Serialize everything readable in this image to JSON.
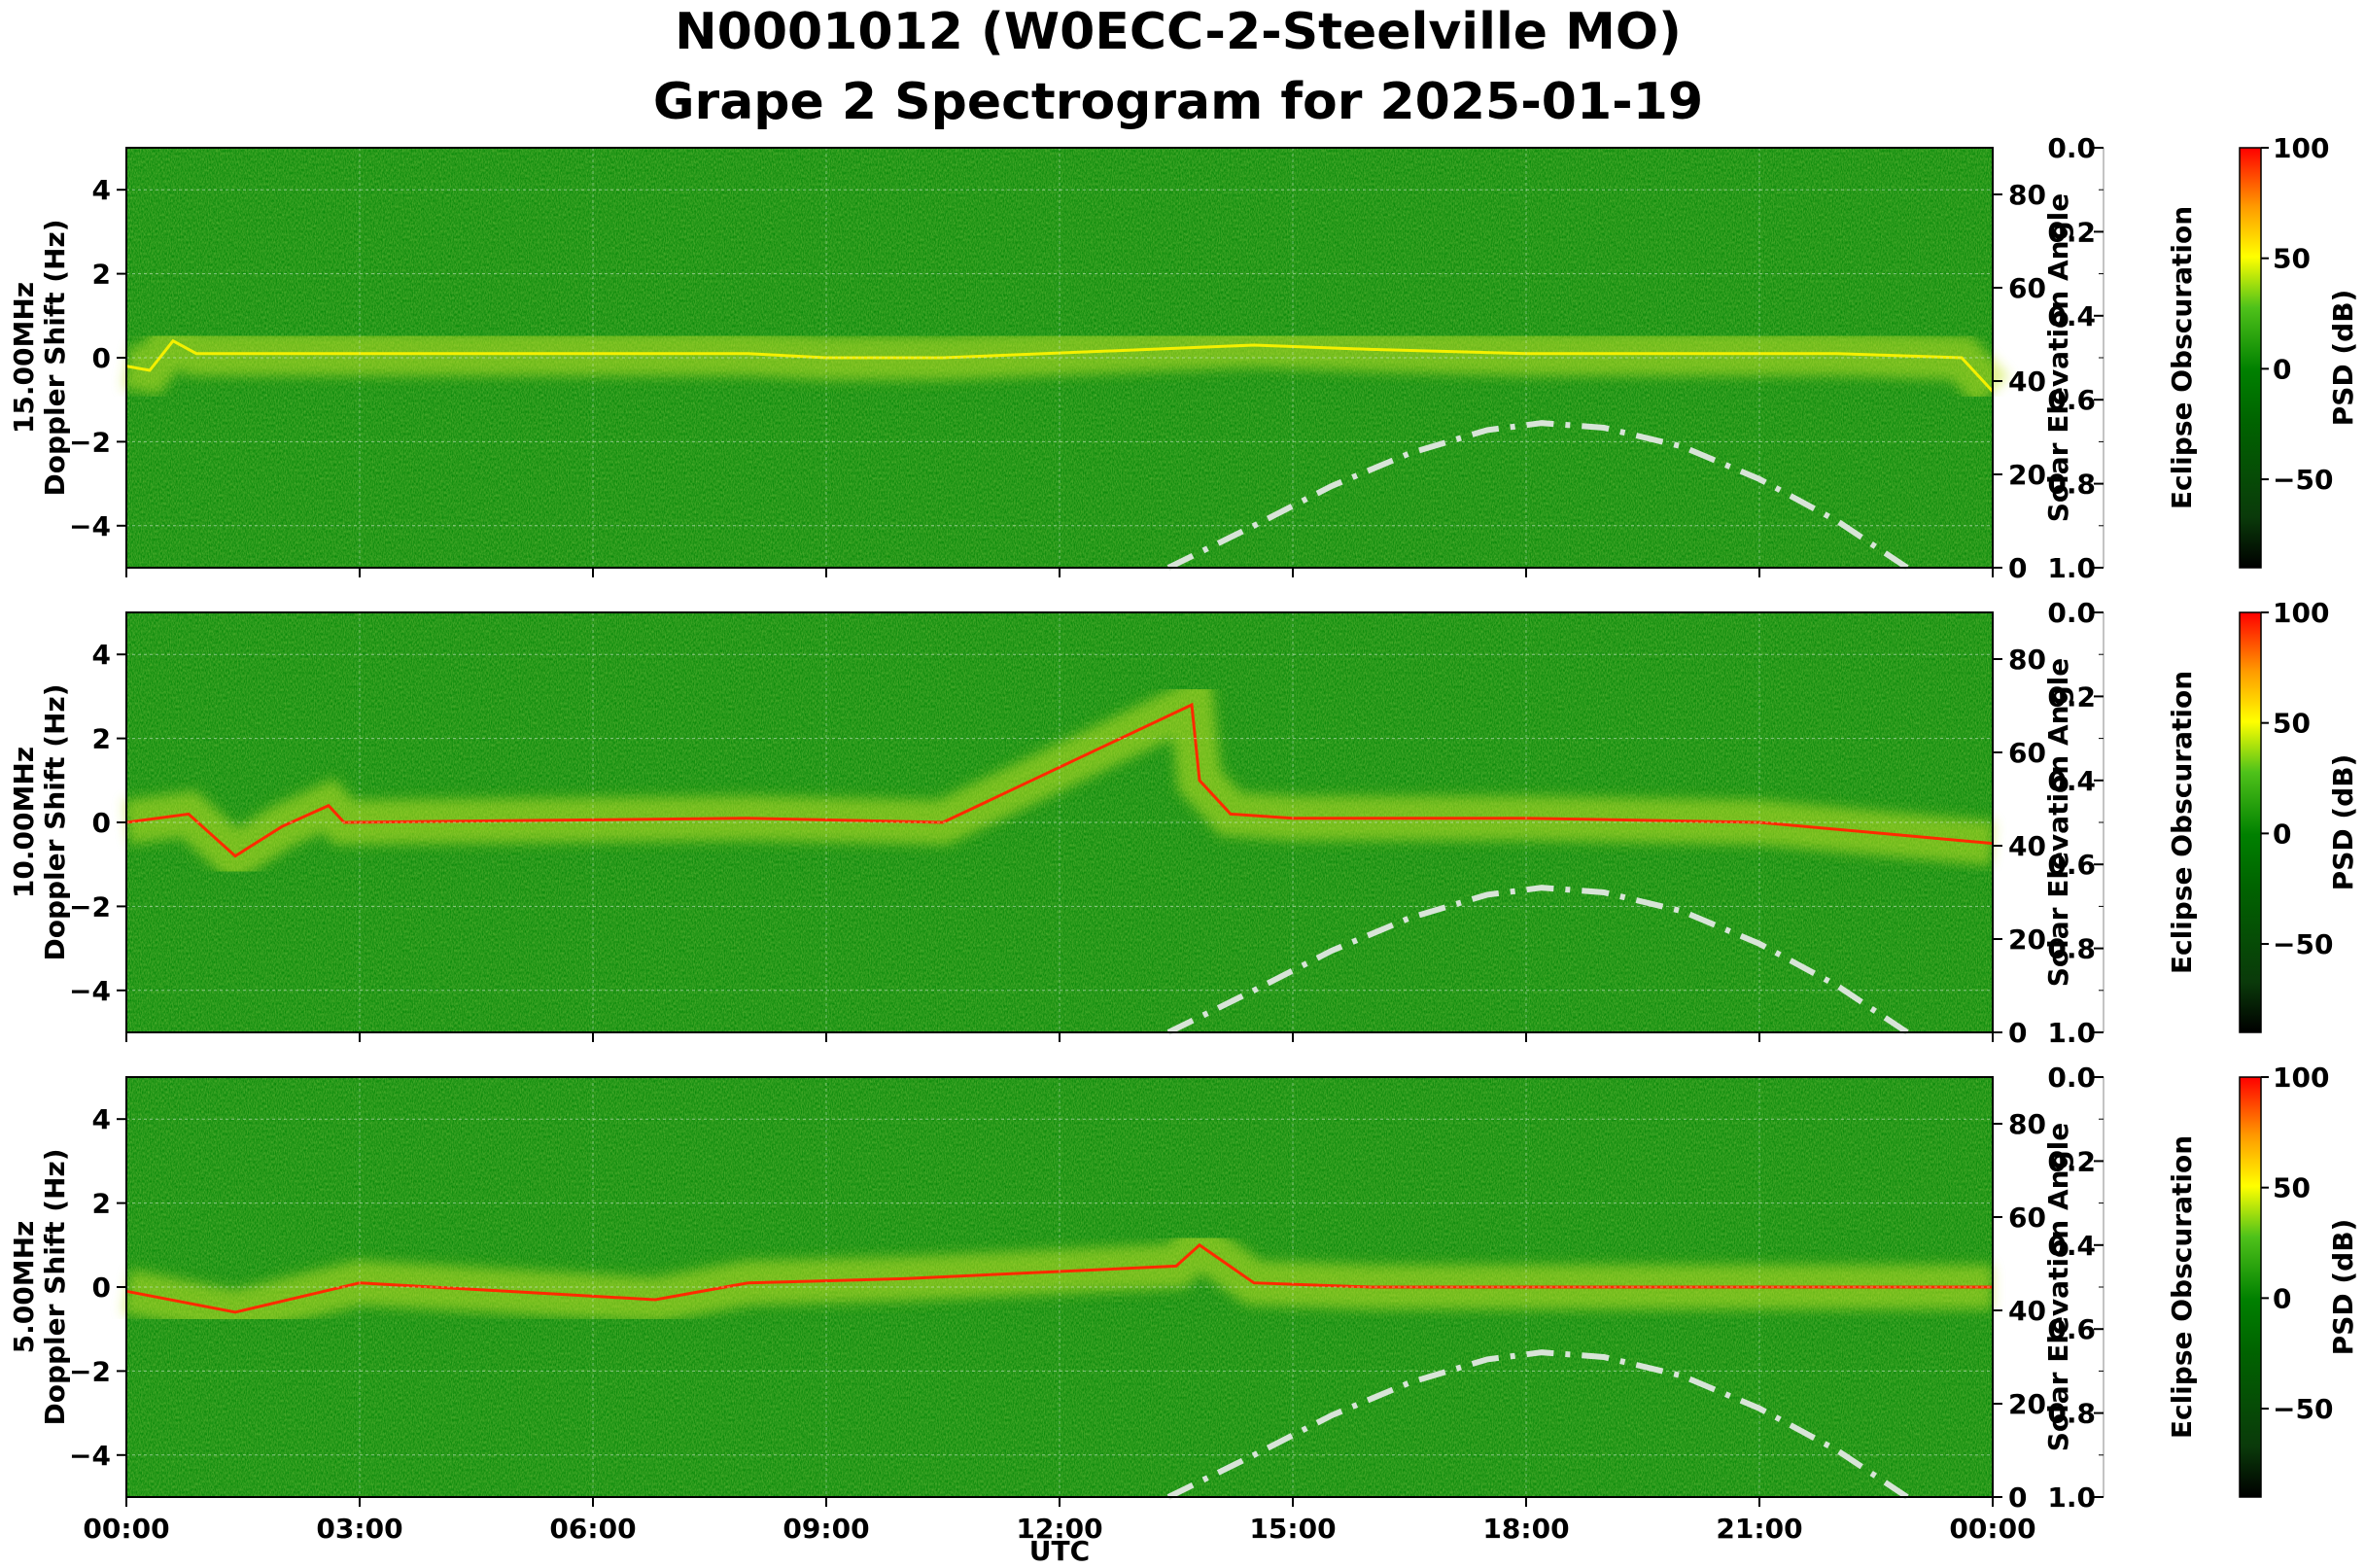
{
  "title": {
    "line1": "N0001012 (W0ECC-2-Steelville MO)",
    "line2": "Grape 2 Spectrogram for 2025-01-19"
  },
  "x_axis": {
    "label": "UTC",
    "ticks": [
      "00:00",
      "03:00",
      "06:00",
      "09:00",
      "12:00",
      "15:00",
      "18:00",
      "21:00",
      "00:00"
    ]
  },
  "axis_labels": {
    "doppler_suffix": "Doppler Shift (Hz)",
    "solar": "Solar Elevation Angle",
    "eclipse": "Eclipse Obscuration",
    "psd": "PSD (dB)"
  },
  "colors": {
    "colormap": [
      "#000000",
      "#006400",
      "#008000",
      "#32cd32",
      "#ffff00",
      "#ff0000"
    ],
    "solar_curve": "#d8e4d8",
    "carrier_trace": "#ff2a00"
  },
  "chart_data": [
    {
      "type": "heatmap",
      "panel": "15.00MHz",
      "ylabel_top": "15.00MHz",
      "ylabel": "Doppler Shift (Hz)",
      "y_ticks": [
        "4",
        "2",
        "0",
        "−2",
        "−4"
      ],
      "ylim": [
        -5,
        5
      ],
      "xlim_hours": [
        0,
        24
      ],
      "solar_ticks": [
        "80",
        "60",
        "40",
        "20",
        "0"
      ],
      "solar_lim": [
        0,
        90
      ],
      "eclipse_ticks": [
        "0.0",
        "0.2",
        "0.4",
        "0.6",
        "0.8",
        "1.0"
      ],
      "eclipse_lim": [
        0,
        1
      ],
      "colorbar_ticks": [
        "100",
        "50",
        "0",
        "−50"
      ],
      "colorbar_lim": [
        -90,
        100
      ],
      "solar_elevation": {
        "x_hours": [
          13.4,
          14.5,
          15.5,
          16.5,
          17.5,
          18.2,
          19,
          20,
          21,
          22,
          22.9
        ],
        "deg": [
          0,
          9,
          17.5,
          24.5,
          29.5,
          31,
          30,
          26,
          19,
          10,
          0
        ]
      },
      "doppler_trace": {
        "x_hours": [
          0,
          0.3,
          0.6,
          0.9,
          8,
          9,
          10.5,
          14.5,
          16,
          18,
          20,
          22,
          23.6,
          24
        ],
        "hz": [
          -0.2,
          -0.3,
          0.4,
          0.1,
          0.1,
          0,
          0,
          0.3,
          0.2,
          0.1,
          0.1,
          0.1,
          0,
          -0.8
        ]
      }
    },
    {
      "type": "heatmap",
      "panel": "10.00MHz",
      "ylabel_top": "10.00MHz",
      "ylabel": "Doppler Shift (Hz)",
      "y_ticks": [
        "4",
        "2",
        "0",
        "−2",
        "−4"
      ],
      "ylim": [
        -5,
        5
      ],
      "xlim_hours": [
        0,
        24
      ],
      "solar_ticks": [
        "80",
        "60",
        "40",
        "20",
        "0"
      ],
      "solar_lim": [
        0,
        90
      ],
      "eclipse_ticks": [
        "0.0",
        "0.2",
        "0.4",
        "0.6",
        "0.8",
        "1.0"
      ],
      "eclipse_lim": [
        0,
        1
      ],
      "colorbar_ticks": [
        "100",
        "50",
        "0",
        "−50"
      ],
      "colorbar_lim": [
        -90,
        100
      ],
      "solar_elevation": {
        "x_hours": [
          13.4,
          14.5,
          15.5,
          16.5,
          17.5,
          18.2,
          19,
          20,
          21,
          22,
          22.9
        ],
        "deg": [
          0,
          9,
          17.5,
          24.5,
          29.5,
          31,
          30,
          26,
          19,
          10,
          0
        ]
      },
      "doppler_trace": {
        "x_hours": [
          0,
          0.8,
          1.4,
          2,
          2.6,
          2.8,
          8,
          10.5,
          13.7,
          13.8,
          14.2,
          15,
          18,
          21,
          24
        ],
        "hz": [
          0,
          0.2,
          -0.8,
          -0.1,
          0.4,
          0,
          0.1,
          0,
          2.8,
          1,
          0.2,
          0.1,
          0.1,
          0,
          -0.5
        ]
      }
    },
    {
      "type": "heatmap",
      "panel": "5.00MHz",
      "ylabel_top": "5.00MHz",
      "ylabel": "Doppler Shift (Hz)",
      "y_ticks": [
        "4",
        "2",
        "0",
        "−2",
        "−4"
      ],
      "ylim": [
        -5,
        5
      ],
      "xlim_hours": [
        0,
        24
      ],
      "solar_ticks": [
        "80",
        "60",
        "40",
        "20",
        "0"
      ],
      "solar_lim": [
        0,
        90
      ],
      "eclipse_ticks": [
        "0.0",
        "0.2",
        "0.4",
        "0.6",
        "0.8",
        "1.0"
      ],
      "eclipse_lim": [
        0,
        1
      ],
      "colorbar_ticks": [
        "100",
        "50",
        "0",
        "−50"
      ],
      "colorbar_lim": [
        -90,
        100
      ],
      "solar_elevation": {
        "x_hours": [
          13.4,
          14.5,
          15.5,
          16.5,
          17.5,
          18.2,
          19,
          20,
          21,
          22,
          22.9
        ],
        "deg": [
          0,
          9,
          17.5,
          24.5,
          29.5,
          31,
          30,
          26,
          19,
          10,
          0
        ]
      },
      "doppler_trace": {
        "x_hours": [
          0,
          1.4,
          3,
          6.8,
          8,
          10,
          13.5,
          13.8,
          14.5,
          16,
          24
        ],
        "hz": [
          -0.1,
          -0.6,
          0.1,
          -0.3,
          0.1,
          0.2,
          0.5,
          1,
          0.1,
          0,
          0
        ]
      }
    }
  ]
}
